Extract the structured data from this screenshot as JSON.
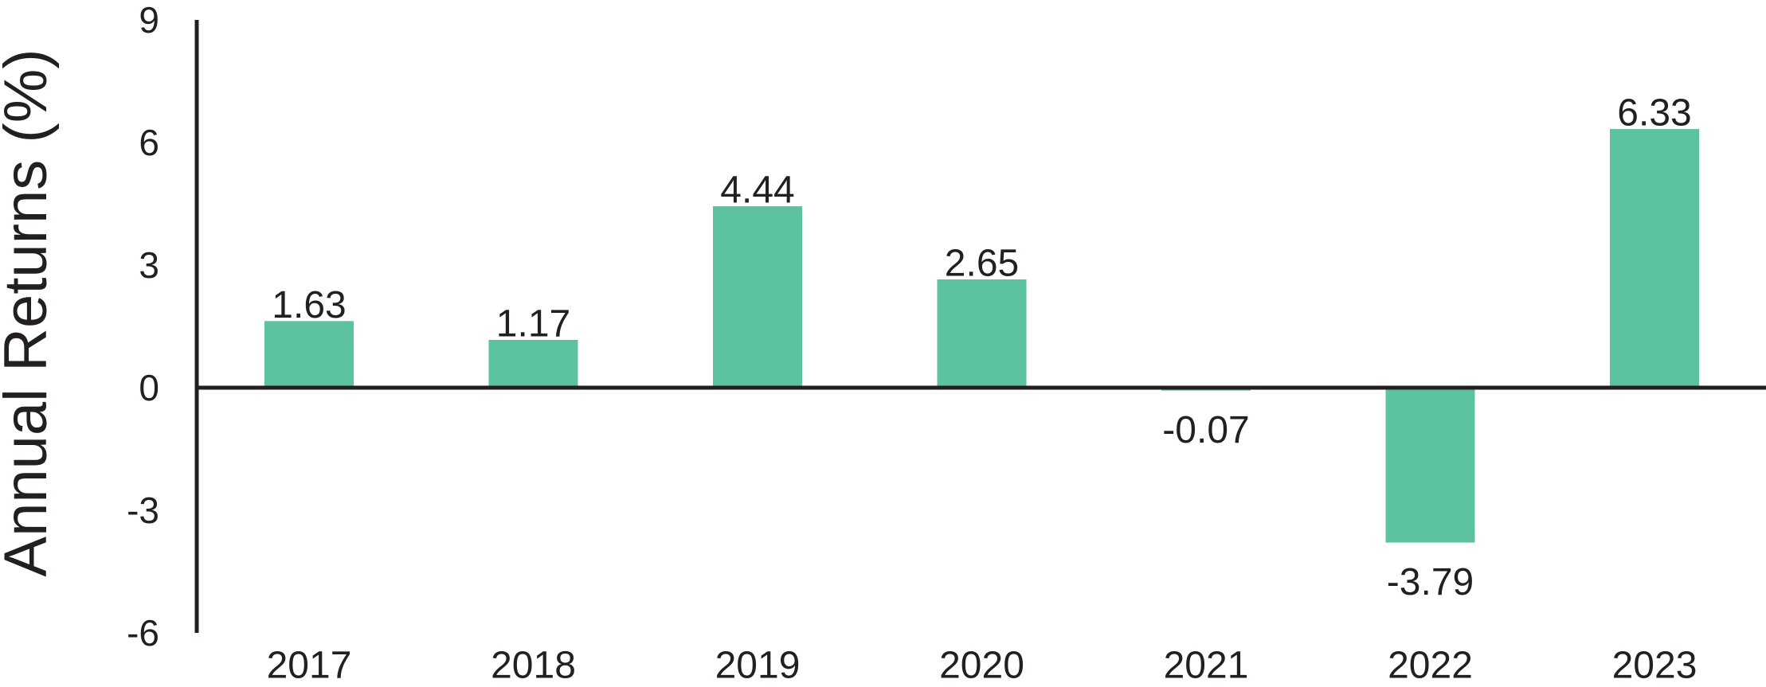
{
  "chart_data": {
    "type": "bar",
    "title": "",
    "xlabel": "",
    "ylabel": "Annual Returns (%)",
    "categories": [
      "2017",
      "2018",
      "2019",
      "2020",
      "2021",
      "2022",
      "2023"
    ],
    "values": [
      1.63,
      1.17,
      4.44,
      2.65,
      -0.07,
      -3.79,
      6.33
    ],
    "data_labels": [
      "1.63",
      "1.17",
      "4.44",
      "2.65",
      "-0.07",
      "-3.79",
      "6.33"
    ],
    "ylim": [
      -6,
      9
    ],
    "yticks": [
      9,
      6,
      3,
      0,
      -3,
      -6
    ],
    "ytick_labels": [
      "9",
      "6",
      "3",
      "0",
      "-3",
      "-6"
    ],
    "grid": false,
    "legend": "none",
    "colors": {
      "bar": "#5cc2a0",
      "axis": "#231f20",
      "text": "#231f20"
    }
  }
}
